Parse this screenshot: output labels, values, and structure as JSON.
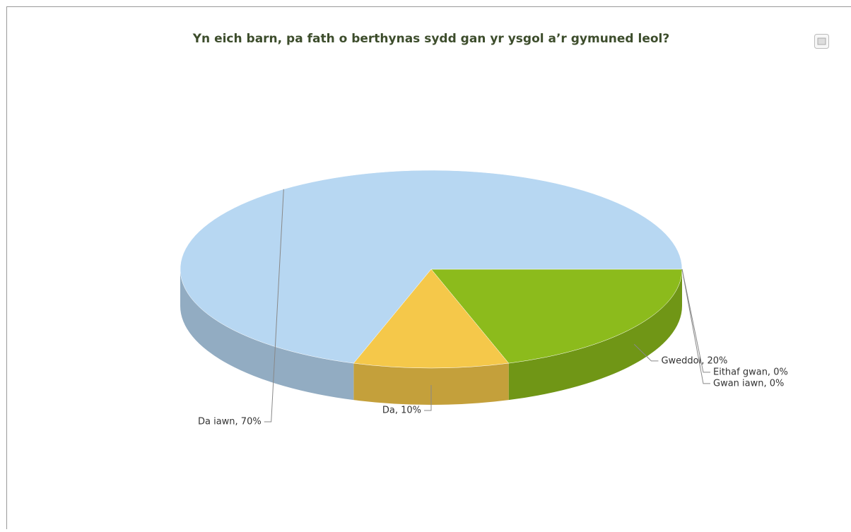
{
  "chart_data": {
    "type": "pie3d",
    "title": "Yn eich barn, pa fath o berthynas sydd gan yr ysgol a’r gymuned leol?",
    "values": [
      20,
      10,
      70,
      0,
      0
    ],
    "value_labels": [
      "Gweddol, 20%",
      "Da, 10%",
      "Da iawn, 70%",
      "Eithaf gwan, 0%",
      "Gwan iawn, 0%"
    ],
    "colors": [
      "#8cbb1c",
      "#f5c84a",
      "#b7d7f2",
      "#999999",
      "#777777"
    ]
  }
}
